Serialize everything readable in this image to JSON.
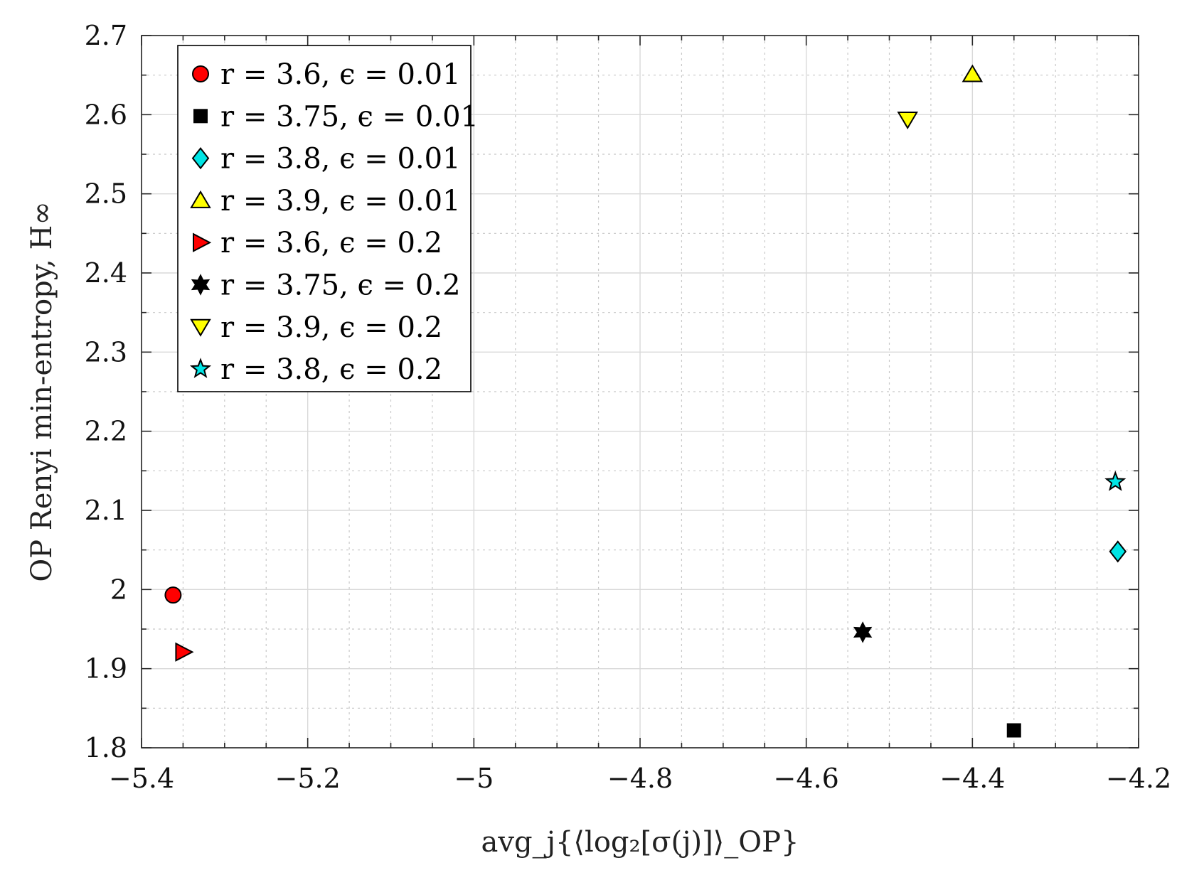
{
  "chart_data": {
    "type": "scatter",
    "xlabel": "avg_j{⟨log₂[σ(j)]⟩_OP}",
    "ylabel": "OP Renyi min-entropy, H∞",
    "xlim": [
      -5.4,
      -4.2
    ],
    "ylim": [
      1.8,
      2.7
    ],
    "x_ticks": [
      -5.4,
      -5.2,
      -5,
      -4.8,
      -4.6,
      -4.4,
      -4.2
    ],
    "x_tick_labels": [
      "−5.4",
      "−5.2",
      "−5",
      "−4.8",
      "−4.6",
      "−4.4",
      "−4.2"
    ],
    "y_ticks": [
      1.8,
      1.9,
      2,
      2.1,
      2.2,
      2.3,
      2.4,
      2.5,
      2.6,
      2.7
    ],
    "y_tick_labels": [
      "1.8",
      "1.9",
      "2",
      "2.1",
      "2.2",
      "2.3",
      "2.4",
      "2.5",
      "2.6",
      "2.7"
    ],
    "grid": true,
    "minor_grid": true,
    "legend_position": "top-left",
    "series": [
      {
        "name": "r = 3.6, ϵ = 0.01",
        "marker": "circle",
        "color": "#ff0000",
        "x": [
          -5.362
        ],
        "y": [
          1.993
        ]
      },
      {
        "name": "r = 3.75, ϵ = 0.01",
        "marker": "square",
        "color": "#000000",
        "x": [
          -4.35
        ],
        "y": [
          1.822
        ]
      },
      {
        "name": "r = 3.8, ϵ = 0.01",
        "marker": "diamond",
        "color": "#00e5e5",
        "x": [
          -4.225
        ],
        "y": [
          2.048
        ]
      },
      {
        "name": "r = 3.9, ϵ = 0.01",
        "marker": "triangle-up",
        "color": "#ffff00",
        "x": [
          -4.4
        ],
        "y": [
          2.651
        ]
      },
      {
        "name": "r = 3.6, ϵ = 0.2",
        "marker": "triangle-right",
        "color": "#ff0000",
        "x": [
          -5.35
        ],
        "y": [
          1.921
        ]
      },
      {
        "name": "r = 3.75, ϵ = 0.2",
        "marker": "hexagram",
        "color": "#000000",
        "x": [
          -4.532
        ],
        "y": [
          1.946
        ]
      },
      {
        "name": "r = 3.9, ϵ = 0.2",
        "marker": "triangle-down",
        "color": "#ffff00",
        "x": [
          -4.478
        ],
        "y": [
          2.594
        ]
      },
      {
        "name": "r = 3.8, ϵ = 0.2",
        "marker": "pentagram",
        "color": "#00e5e5",
        "x": [
          -4.228
        ],
        "y": [
          2.136
        ]
      }
    ]
  }
}
